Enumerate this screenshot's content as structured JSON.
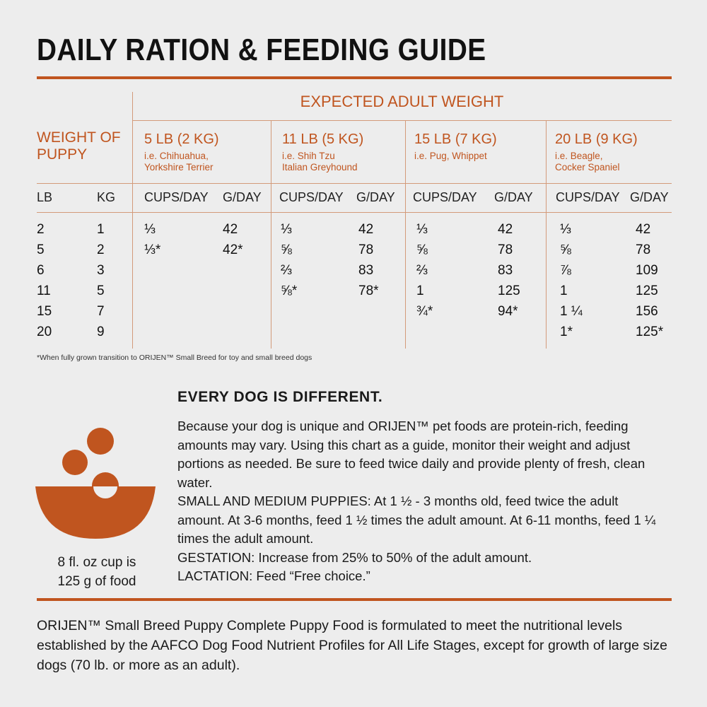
{
  "title": "DAILY RATION & FEEDING GUIDE",
  "table": {
    "expected_header": "EXPECTED ADULT WEIGHT",
    "weight_of_puppy": "WEIGHT OF PUPPY",
    "units": {
      "lb": "LB",
      "kg": "KG",
      "cups": "CUPS/DAY",
      "grams": "G/DAY"
    },
    "puppy_weights": {
      "lb": [
        "2",
        "5",
        "6",
        "11",
        "15",
        "20"
      ],
      "kg": [
        "1",
        "2",
        "3",
        "5",
        "7",
        "9"
      ]
    },
    "columns": [
      {
        "title": "5 LB (2 KG)",
        "breeds": [
          "i.e. Chihuahua,",
          "Yorkshire Terrier"
        ],
        "cups": [
          "⅓",
          "⅓*"
        ],
        "grams": [
          "42",
          "42*"
        ]
      },
      {
        "title": "11 LB (5 KG)",
        "breeds": [
          "i.e. Shih Tzu",
          "Italian Greyhound"
        ],
        "cups": [
          "⅓",
          "⅝",
          "⅔",
          "⅝*"
        ],
        "grams": [
          "42",
          "78",
          "83",
          "78*"
        ]
      },
      {
        "title": "15 LB (7 KG)",
        "breeds": [
          "i.e. Pug, Whippet",
          ""
        ],
        "cups": [
          "⅓",
          "⅝",
          "⅔",
          "1",
          "¾*"
        ],
        "grams": [
          "42",
          "78",
          "83",
          "125",
          "94*"
        ]
      },
      {
        "title": "20 LB (9 KG)",
        "breeds": [
          "i.e. Beagle,",
          "Cocker Spaniel"
        ],
        "cups": [
          "⅓",
          "⅝",
          "⅞",
          "1",
          "1 ¼",
          "1*"
        ],
        "grams": [
          "42",
          "78",
          "109",
          "125",
          "156",
          "125*"
        ]
      }
    ],
    "footnote": "*When fully grown transition to ORIJEN™ Small Breed for toy and small breed dogs"
  },
  "section_title": "EVERY DOG IS DIFFERENT.",
  "paragraphs": [
    "Because your dog is unique and ORIJEN™ pet foods are protein-rich, feeding amounts may vary. Using this chart as a guide, monitor their weight and adjust portions as needed. Be sure to feed twice daily and provide plenty of fresh, clean water.",
    "SMALL AND MEDIUM PUPPIES: At 1 ½ - 3 months old, feed twice the adult amount. At 3-6 months, feed 1 ½ times the adult amount. At 6-11 months, feed 1 ¼ times the adult amount.",
    "GESTATION: Increase from 25% to 50% of the adult amount.",
    "LACTATION: Feed “Free choice.”"
  ],
  "cup_caption": [
    "8 fl. oz cup is",
    "125 g of food"
  ],
  "closing": "ORIJEN™ Small Breed Puppy Complete Puppy Food is formulated to meet the nutritional levels established by the AAFCO Dog Food Nutrient Profiles for All Life Stages, except for growth of large size dogs (70 lb. or more as an adult).",
  "colors": {
    "accent": "#c0551f",
    "background": "#ededed",
    "text": "#1a1a1a"
  },
  "icons": [
    "bowl-icon"
  ]
}
